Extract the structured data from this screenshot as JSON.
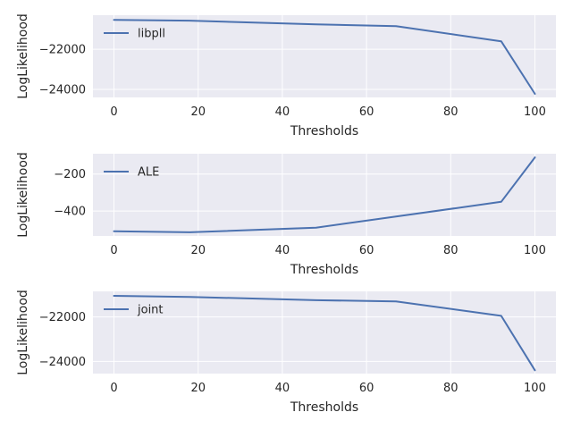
{
  "chart_data": [
    {
      "type": "line",
      "title": "",
      "xlabel": "Thresholds",
      "ylabel": "LogLikelihood",
      "xlim": [
        -5,
        105
      ],
      "ylim": [
        -24400,
        -20300
      ],
      "xticks": [
        0,
        20,
        40,
        60,
        80,
        100
      ],
      "xtick_labels": [
        "0",
        "20",
        "40",
        "60",
        "80",
        "100"
      ],
      "yticks": [
        -22000,
        -24000
      ],
      "ytick_labels": [
        "−22000",
        "−24000"
      ],
      "grid": true,
      "legend": "upper-left",
      "series": [
        {
          "name": "libpll",
          "color": "#4C72B0",
          "x": [
            0,
            18,
            48,
            67,
            92,
            100
          ],
          "y": [
            -20530,
            -20570,
            -20760,
            -20850,
            -21600,
            -24220
          ]
        }
      ]
    },
    {
      "type": "line",
      "title": "",
      "xlabel": "Thresholds",
      "ylabel": "LogLikelihood",
      "xlim": [
        -5,
        105
      ],
      "ylim": [
        -535,
        -90
      ],
      "xticks": [
        0,
        20,
        40,
        60,
        80,
        100
      ],
      "xtick_labels": [
        "0",
        "20",
        "40",
        "60",
        "80",
        "100"
      ],
      "yticks": [
        -200,
        -400
      ],
      "ytick_labels": [
        "−200",
        "−400"
      ],
      "grid": true,
      "legend": "upper-left",
      "series": [
        {
          "name": "ALE",
          "color": "#4C72B0",
          "x": [
            0,
            18,
            48,
            67,
            92,
            100
          ],
          "y": [
            -510,
            -515,
            -490,
            -430,
            -350,
            -110
          ]
        }
      ]
    },
    {
      "type": "line",
      "title": "",
      "xlabel": "Thresholds",
      "ylabel": "LogLikelihood",
      "xlim": [
        -5,
        105
      ],
      "ylim": [
        -24550,
        -20850
      ],
      "xticks": [
        0,
        20,
        40,
        60,
        80,
        100
      ],
      "xtick_labels": [
        "0",
        "20",
        "40",
        "60",
        "80",
        "100"
      ],
      "yticks": [
        -22000,
        -24000
      ],
      "ytick_labels": [
        "−22000",
        "−24000"
      ],
      "grid": true,
      "legend": "upper-left",
      "series": [
        {
          "name": "joint",
          "color": "#4C72B0",
          "x": [
            0,
            18,
            48,
            67,
            92,
            100
          ],
          "y": [
            -21050,
            -21100,
            -21250,
            -21300,
            -21950,
            -24400
          ]
        }
      ]
    }
  ]
}
